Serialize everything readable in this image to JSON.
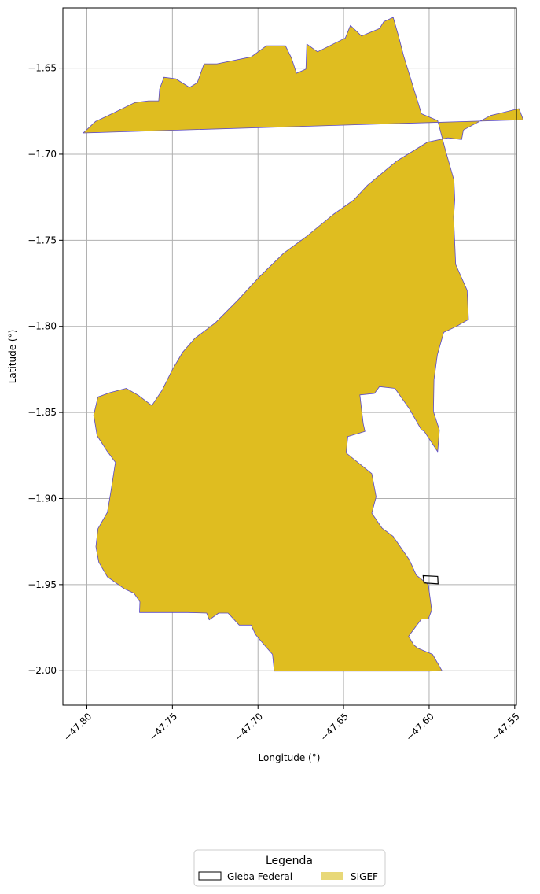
{
  "chart_data": {
    "type": "map",
    "xlabel": "Longitude (°)",
    "ylabel": "Latitude (°)",
    "xlim": [
      -47.814,
      -47.549
    ],
    "ylim": [
      -2.02,
      -1.615
    ],
    "x_ticks": [
      -47.8,
      -47.75,
      -47.7,
      -47.65,
      -47.6,
      -47.55
    ],
    "x_tick_labels": [
      "−47.80",
      "−47.75",
      "−47.70",
      "−47.65",
      "−47.60",
      "−47.55"
    ],
    "y_ticks": [
      -1.65,
      -1.7,
      -1.75,
      -1.8,
      -1.85,
      -1.9,
      -1.95,
      -2.0
    ],
    "y_tick_labels": [
      "−1.65",
      "−1.70",
      "−1.75",
      "−1.80",
      "−1.85",
      "−1.90",
      "−1.95",
      "−2.00"
    ],
    "grid": true,
    "legend": {
      "title": "Legenda",
      "placement": "bottom-center",
      "entries": [
        {
          "label": "Gleba Federal",
          "fill": "#ffffff",
          "edge": "#000000"
        },
        {
          "label": "SIGEF",
          "fill": "#e8d878",
          "edge": "none"
        }
      ]
    },
    "colors": {
      "sigef_fill": "#dfbd20",
      "sigef_edge": "#5a4ac8",
      "gleba_edge": "#000000",
      "grid": "#b0b0b0"
    },
    "sigef_outline": [
      [
        -47.8021,
        -1.6877
      ],
      [
        -47.795,
        -1.681
      ],
      [
        -47.7843,
        -1.676
      ],
      [
        -47.772,
        -1.67
      ],
      [
        -47.764,
        -1.669
      ],
      [
        -47.758,
        -1.669
      ],
      [
        -47.7575,
        -1.6622
      ],
      [
        -47.755,
        -1.6553
      ],
      [
        -47.748,
        -1.6562
      ],
      [
        -47.74,
        -1.6612
      ],
      [
        -47.7355,
        -1.6585
      ],
      [
        -47.7315,
        -1.6475
      ],
      [
        -47.724,
        -1.6475
      ],
      [
        -47.704,
        -1.6435
      ],
      [
        -47.695,
        -1.637
      ],
      [
        -47.684,
        -1.637
      ],
      [
        -47.6805,
        -1.644
      ],
      [
        -47.6775,
        -1.653
      ],
      [
        -47.672,
        -1.6505
      ],
      [
        -47.6715,
        -1.636
      ],
      [
        -47.6652,
        -1.6405
      ],
      [
        -47.649,
        -1.6325
      ],
      [
        -47.646,
        -1.6252
      ],
      [
        -47.6395,
        -1.6313
      ],
      [
        -47.629,
        -1.627
      ],
      [
        -47.6265,
        -1.623
      ],
      [
        -47.621,
        -1.6205
      ],
      [
        -47.618,
        -1.631
      ],
      [
        -47.615,
        -1.6425
      ],
      [
        -47.6045,
        -1.6765
      ],
      [
        -47.595,
        -1.6805
      ],
      [
        -47.5905,
        -1.6975
      ],
      [
        -47.5855,
        -1.715
      ],
      [
        -47.585,
        -1.7265
      ],
      [
        -47.5857,
        -1.7365
      ],
      [
        -47.5845,
        -1.764
      ],
      [
        -47.5778,
        -1.779
      ],
      [
        -47.577,
        -1.796
      ],
      [
        -47.584,
        -1.8
      ],
      [
        -47.5915,
        -1.8035
      ],
      [
        -47.5952,
        -1.8165
      ],
      [
        -47.5972,
        -1.831
      ],
      [
        -47.5975,
        -1.8495
      ],
      [
        -47.594,
        -1.8602
      ],
      [
        -47.595,
        -1.8728
      ],
      [
        -47.603,
        -1.8608
      ],
      [
        -47.6045,
        -1.8602
      ],
      [
        -47.6115,
        -1.848
      ],
      [
        -47.62,
        -1.836
      ],
      [
        -47.629,
        -1.835
      ],
      [
        -47.632,
        -1.839
      ],
      [
        -47.6405,
        -1.8398
      ],
      [
        -47.6385,
        -1.8565
      ],
      [
        -47.6375,
        -1.861
      ],
      [
        -47.6475,
        -1.864
      ],
      [
        -47.6485,
        -1.8735
      ],
      [
        -47.6335,
        -1.8855
      ],
      [
        -47.631,
        -1.899
      ],
      [
        -47.6335,
        -1.9085
      ],
      [
        -47.6275,
        -1.9172
      ],
      [
        -47.621,
        -1.922
      ],
      [
        -47.6115,
        -1.9357
      ],
      [
        -47.6075,
        -1.9445
      ],
      [
        -47.6005,
        -1.95
      ],
      [
        -47.5985,
        -1.9648
      ],
      [
        -47.6005,
        -1.97
      ],
      [
        -47.6045,
        -1.97
      ],
      [
        -47.612,
        -1.98
      ],
      [
        -47.609,
        -1.985
      ],
      [
        -47.6065,
        -1.987
      ],
      [
        -47.598,
        -1.9905
      ],
      [
        -47.5925,
        -2.0
      ],
      [
        -47.6,
        -2.0002
      ],
      [
        -47.6905,
        -2.0002
      ],
      [
        -47.6915,
        -1.9905
      ],
      [
        -47.6955,
        -1.986
      ],
      [
        -47.7015,
        -1.979
      ],
      [
        -47.704,
        -1.9735
      ],
      [
        -47.711,
        -1.9735
      ],
      [
        -47.7175,
        -1.9665
      ],
      [
        -47.723,
        -1.9665
      ],
      [
        -47.7285,
        -1.9705
      ],
      [
        -47.73,
        -1.9665
      ],
      [
        -47.741,
        -1.9662
      ],
      [
        -47.7495,
        -1.9662
      ],
      [
        -47.7692,
        -1.9662
      ],
      [
        -47.769,
        -1.96
      ],
      [
        -47.7725,
        -1.955
      ],
      [
        -47.778,
        -1.9525
      ],
      [
        -47.788,
        -1.9455
      ],
      [
        -47.793,
        -1.937
      ],
      [
        -47.7947,
        -1.928
      ],
      [
        -47.7935,
        -1.9175
      ],
      [
        -47.788,
        -1.908
      ],
      [
        -47.7858,
        -1.895
      ],
      [
        -47.7833,
        -1.879
      ],
      [
        -47.7885,
        -1.872
      ],
      [
        -47.794,
        -1.8635
      ],
      [
        -47.796,
        -1.8515
      ],
      [
        -47.7935,
        -1.841
      ],
      [
        -47.7865,
        -1.8385
      ],
      [
        -47.777,
        -1.836
      ],
      [
        -47.77,
        -1.84
      ],
      [
        -47.762,
        -1.846
      ],
      [
        -47.756,
        -1.837
      ],
      [
        -47.75,
        -1.825
      ],
      [
        -47.744,
        -1.815
      ],
      [
        -47.737,
        -1.807
      ],
      [
        -47.725,
        -1.798
      ],
      [
        -47.712,
        -1.785
      ],
      [
        -47.699,
        -1.771
      ],
      [
        -47.685,
        -1.7575
      ],
      [
        -47.672,
        -1.748
      ],
      [
        -47.656,
        -1.735
      ],
      [
        -47.644,
        -1.7265
      ],
      [
        -47.636,
        -1.718
      ],
      [
        -47.619,
        -1.704
      ],
      [
        -47.601,
        -1.693
      ],
      [
        -47.589,
        -1.6905
      ],
      [
        -47.581,
        -1.6915
      ],
      [
        -47.58,
        -1.686
      ],
      [
        -47.564,
        -1.6775
      ],
      [
        -47.5475,
        -1.6735
      ],
      [
        -47.545,
        -1.68
      ]
    ],
    "gleba_federal": [
      [
        -47.6035,
        -1.9448
      ],
      [
        -47.595,
        -1.9452
      ],
      [
        -47.5948,
        -1.9495
      ],
      [
        -47.603,
        -1.949
      ]
    ]
  }
}
